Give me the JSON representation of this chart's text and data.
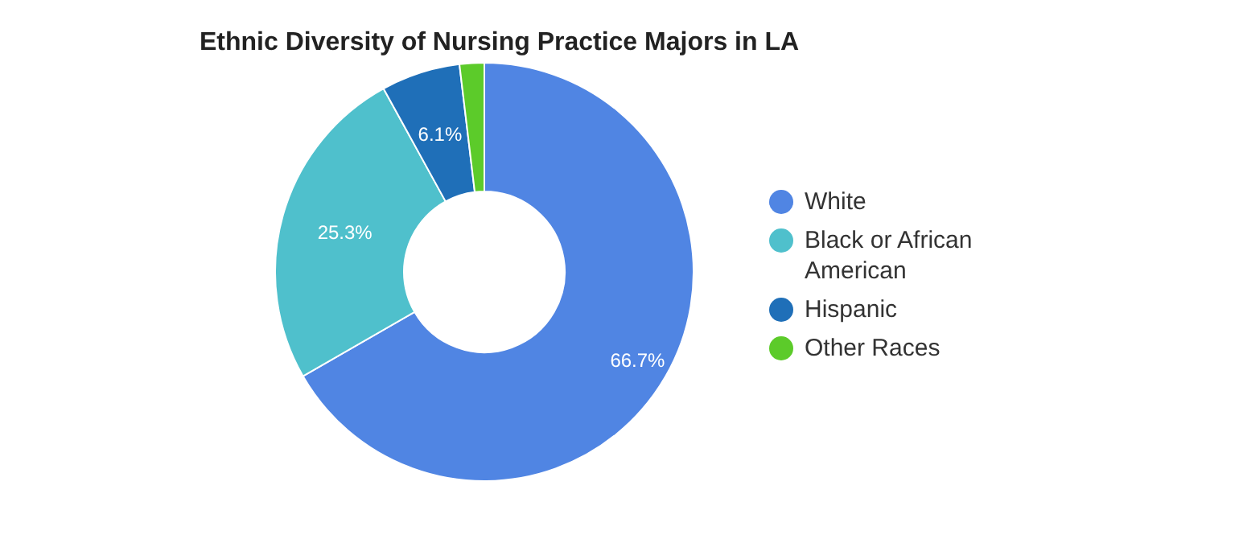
{
  "chart_data": {
    "type": "donut",
    "title": "Ethnic Diversity of Nursing Practice Majors in LA",
    "categories": [
      "White",
      "Black or African American",
      "Hispanic",
      "Other Races"
    ],
    "values": [
      66.7,
      25.3,
      6.1,
      1.9
    ],
    "colors": [
      "#5085e3",
      "#4fc0cc",
      "#1f6fb8",
      "#5ccb2a"
    ],
    "value_labels": [
      "66.7%",
      "25.3%",
      "6.1%",
      null
    ],
    "legend": "right"
  }
}
